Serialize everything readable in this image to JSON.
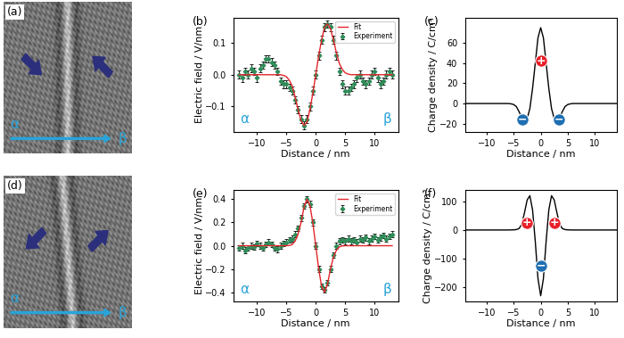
{
  "images": [
    {
      "label": "(a)",
      "start": "α",
      "end": "β"
    },
    {
      "label": "(d)",
      "start": "α",
      "end": "β"
    }
  ],
  "chart_data": [
    {
      "label": "(b)",
      "type": "line",
      "xlabel": "Distance / nm",
      "ylabel": "Electric field / V/nm",
      "start": "α",
      "end": "β",
      "xlim": [
        -14,
        14
      ],
      "ylim": [
        -0.18,
        0.18
      ],
      "xticks": [
        {
          "value": -10,
          "label": "−10"
        },
        {
          "value": -5,
          "label": "−5"
        },
        0,
        5,
        10
      ],
      "yticks": [
        {
          "value": -0.1,
          "label": "−0.1"
        },
        {
          "value": 0,
          "label": "0.0"
        },
        0.1
      ],
      "legend": "upper right",
      "x": [
        -13,
        -12.5,
        -12,
        -11.5,
        -11,
        -10.5,
        -10,
        -9.5,
        -9,
        -8.5,
        -8,
        -7.5,
        -7,
        -6.5,
        -6,
        -5.5,
        -5,
        -4.5,
        -4,
        -3.5,
        -3,
        -2.5,
        -2,
        -1.5,
        -1,
        -0.5,
        0,
        0.5,
        1,
        1.5,
        2,
        2.5,
        3,
        3.5,
        4,
        4.5,
        5,
        5.5,
        6,
        6.5,
        7,
        7.5,
        8,
        8.5,
        9,
        9.5,
        10,
        10.5,
        11,
        11.5,
        12,
        12.5,
        13
      ],
      "series": [
        {
          "name": "Fit",
          "type": "line",
          "color": "#e3262b",
          "values": [
            0,
            0,
            0,
            0,
            0,
            0,
            0,
            0,
            0,
            0,
            0,
            0,
            0,
            0,
            0,
            -0.002,
            -0.006,
            -0.017,
            -0.036,
            -0.07,
            -0.11,
            -0.145,
            -0.16,
            -0.15,
            -0.11,
            -0.06,
            0.0,
            0.06,
            0.11,
            0.15,
            0.16,
            0.145,
            0.11,
            0.07,
            0.036,
            0.017,
            0.006,
            0.002,
            0,
            0,
            0,
            0,
            0,
            0,
            0,
            0,
            0,
            0,
            0,
            0,
            0,
            0,
            0
          ]
        },
        {
          "name": "Experiment",
          "type": "errorbar",
          "color": "#2e8b57",
          "marker": "diamond",
          "values": [
            0.0,
            -0.01,
            0.01,
            0.0,
            0.02,
            0.01,
            -0.01,
            0.02,
            0.03,
            0.05,
            0.05,
            0.04,
            0.03,
            0.01,
            -0.02,
            -0.03,
            -0.03,
            -0.04,
            -0.05,
            -0.08,
            -0.11,
            -0.14,
            -0.16,
            -0.14,
            -0.1,
            -0.05,
            0.0,
            0.06,
            0.11,
            0.15,
            0.16,
            0.15,
            0.11,
            0.06,
            0.01,
            -0.03,
            -0.05,
            -0.05,
            -0.04,
            -0.03,
            -0.01,
            0.0,
            -0.02,
            -0.03,
            -0.02,
            0.0,
            0.01,
            -0.01,
            -0.03,
            -0.02,
            0.0,
            0.01,
            0.0
          ],
          "errors": [
            0.012,
            0.012,
            0.012,
            0.012,
            0.012,
            0.012,
            0.012,
            0.012,
            0.012,
            0.012,
            0.012,
            0.012,
            0.012,
            0.012,
            0.012,
            0.012,
            0.012,
            0.012,
            0.012,
            0.012,
            0.012,
            0.012,
            0.012,
            0.012,
            0.012,
            0.012,
            0.012,
            0.012,
            0.012,
            0.012,
            0.012,
            0.012,
            0.012,
            0.012,
            0.012,
            0.012,
            0.012,
            0.012,
            0.012,
            0.012,
            0.012,
            0.012,
            0.012,
            0.012,
            0.012,
            0.012,
            0.012,
            0.012,
            0.012,
            0.012,
            0.012,
            0.012,
            0.012
          ]
        }
      ]
    },
    {
      "label": "(c)",
      "type": "line",
      "xlabel": "Distance / nm",
      "ylabel": "Charge density / C/cm³",
      "xlim": [
        -14,
        14
      ],
      "ylim": [
        -28,
        85
      ],
      "xticks": [
        {
          "value": -10,
          "label": "−10"
        },
        {
          "value": -5,
          "label": "−5"
        },
        0,
        5,
        10
      ],
      "yticks": [
        {
          "value": -20,
          "label": "−20"
        },
        0,
        20,
        40,
        60
      ],
      "x": [
        -14,
        -10,
        -7,
        -6.5,
        -6,
        -5.5,
        -5,
        -4.5,
        -4,
        -3.5,
        -3,
        -2.5,
        -2,
        -1.5,
        -1,
        -0.5,
        0,
        0.5,
        1,
        1.5,
        2,
        2.5,
        3,
        3.5,
        4,
        4.5,
        5,
        5.5,
        6,
        6.5,
        7,
        10,
        14
      ],
      "series": [
        {
          "type": "line",
          "color": "#000000",
          "values": [
            0,
            0,
            0,
            0,
            0,
            -0.3,
            -1,
            -3,
            -8,
            -14,
            -17,
            -15,
            -5,
            15,
            40,
            65,
            75,
            65,
            40,
            15,
            -5,
            -15,
            -17,
            -14,
            -8,
            -3,
            -1,
            -0.3,
            0,
            0,
            0,
            0,
            0
          ]
        }
      ],
      "annotations": [
        {
          "text": "+",
          "x": 0,
          "y": 42,
          "color": "#e8202a"
        },
        {
          "text": "−",
          "x": -3.4,
          "y": -16,
          "color": "#1f6fb2"
        },
        {
          "text": "−",
          "x": 3.4,
          "y": -16,
          "color": "#1f6fb2"
        }
      ]
    },
    {
      "label": "(e)",
      "type": "line",
      "xlabel": "Distance / nm",
      "ylabel": "Electric field / V/nm",
      "start": "α",
      "end": "β",
      "xlim": [
        -14,
        14
      ],
      "ylim": [
        -0.48,
        0.48
      ],
      "xticks": [
        {
          "value": -10,
          "label": "−10"
        },
        {
          "value": -5,
          "label": "−5"
        },
        0,
        5,
        10
      ],
      "yticks": [
        {
          "value": -0.4,
          "label": "−0.4"
        },
        {
          "value": -0.2,
          "label": "−0.2"
        },
        {
          "value": 0,
          "label": "0.0"
        },
        0.2,
        0.4
      ],
      "legend": "upper right",
      "x": [
        -13,
        -12.5,
        -12,
        -11.5,
        -11,
        -10.5,
        -10,
        -9.5,
        -9,
        -8.5,
        -8,
        -7.5,
        -7,
        -6.5,
        -6,
        -5.5,
        -5,
        -4.5,
        -4,
        -3.5,
        -3,
        -2.5,
        -2,
        -1.5,
        -1,
        -0.5,
        0,
        0.5,
        1,
        1.5,
        2,
        2.5,
        3,
        3.5,
        4,
        4.5,
        5,
        5.5,
        6,
        6.5,
        7,
        7.5,
        8,
        8.5,
        9,
        9.5,
        10,
        10.5,
        11,
        11.5,
        12,
        12.5,
        13
      ],
      "series": [
        {
          "name": "Fit",
          "type": "line",
          "color": "#e3262b",
          "values": [
            0,
            0,
            0,
            0,
            0,
            0,
            0,
            0,
            0,
            0,
            0,
            0,
            0,
            0,
            0,
            0,
            0,
            0.002,
            0.01,
            0.04,
            0.1,
            0.2,
            0.33,
            0.4,
            0.35,
            0.2,
            0.0,
            -0.2,
            -0.35,
            -0.4,
            -0.33,
            -0.2,
            -0.1,
            -0.04,
            -0.01,
            -0.002,
            0,
            0,
            0,
            0,
            0,
            0,
            0,
            0,
            0,
            0,
            0,
            0,
            0,
            0,
            0,
            0,
            0
          ]
        },
        {
          "name": "Experiment",
          "type": "errorbar",
          "color": "#2e8b57",
          "marker": "diamond",
          "values": [
            -0.02,
            0.0,
            -0.04,
            -0.02,
            0.0,
            -0.01,
            0.02,
            0.0,
            -0.02,
            0.01,
            0.03,
            0.01,
            -0.02,
            -0.03,
            0.0,
            0.02,
            0.03,
            0.05,
            0.06,
            0.1,
            0.15,
            0.24,
            0.34,
            0.4,
            0.36,
            0.2,
            0.0,
            -0.2,
            -0.35,
            -0.38,
            -0.32,
            -0.2,
            -0.08,
            0.0,
            0.04,
            0.05,
            0.04,
            0.06,
            0.04,
            0.05,
            0.03,
            0.06,
            0.05,
            0.07,
            0.04,
            0.06,
            0.08,
            0.05,
            0.07,
            0.09,
            0.06,
            0.08,
            0.1
          ],
          "errors": [
            0.025,
            0.025,
            0.025,
            0.025,
            0.025,
            0.025,
            0.025,
            0.025,
            0.025,
            0.025,
            0.025,
            0.025,
            0.025,
            0.025,
            0.025,
            0.025,
            0.025,
            0.025,
            0.025,
            0.025,
            0.025,
            0.025,
            0.025,
            0.025,
            0.025,
            0.025,
            0.025,
            0.025,
            0.025,
            0.025,
            0.025,
            0.025,
            0.025,
            0.025,
            0.025,
            0.025,
            0.025,
            0.025,
            0.025,
            0.025,
            0.025,
            0.025,
            0.025,
            0.025,
            0.025,
            0.025,
            0.025,
            0.025,
            0.025,
            0.025,
            0.025,
            0.025,
            0.025
          ]
        }
      ]
    },
    {
      "label": "(f)",
      "type": "line",
      "xlabel": "Distance / nm",
      "ylabel": "Charge density / C/cm³",
      "xlim": [
        -14,
        14
      ],
      "ylim": [
        -250,
        140
      ],
      "xticks": [
        {
          "value": -10,
          "label": "−10"
        },
        {
          "value": -5,
          "label": "−5"
        },
        0,
        5,
        10
      ],
      "yticks": [
        {
          "value": -200,
          "label": "−200"
        },
        {
          "value": -100,
          "label": "−100"
        },
        0,
        100
      ],
      "x": [
        -14,
        -10,
        -7,
        -6.5,
        -6,
        -5.5,
        -5,
        -4.5,
        -4,
        -3.5,
        -3,
        -2.5,
        -2,
        -1.5,
        -1,
        -0.5,
        0,
        0.5,
        1,
        1.5,
        2,
        2.5,
        3,
        3.5,
        4,
        4.5,
        5,
        5.5,
        6,
        6.5,
        7,
        10,
        14
      ],
      "series": [
        {
          "type": "line",
          "color": "#000000",
          "values": [
            0,
            0,
            0,
            0,
            0,
            0.2,
            0.5,
            1.5,
            5,
            20,
            60,
            105,
            120,
            70,
            -40,
            -170,
            -230,
            -170,
            -40,
            70,
            120,
            105,
            60,
            20,
            5,
            1.5,
            0.5,
            0.2,
            0,
            0,
            0,
            0,
            0
          ]
        }
      ],
      "annotations": [
        {
          "text": "+",
          "x": -2.6,
          "y": 25,
          "color": "#e8202a"
        },
        {
          "text": "+",
          "x": 2.6,
          "y": 25,
          "color": "#e8202a"
        },
        {
          "text": "−",
          "x": 0,
          "y": -125,
          "color": "#1f6fb2"
        }
      ]
    }
  ]
}
